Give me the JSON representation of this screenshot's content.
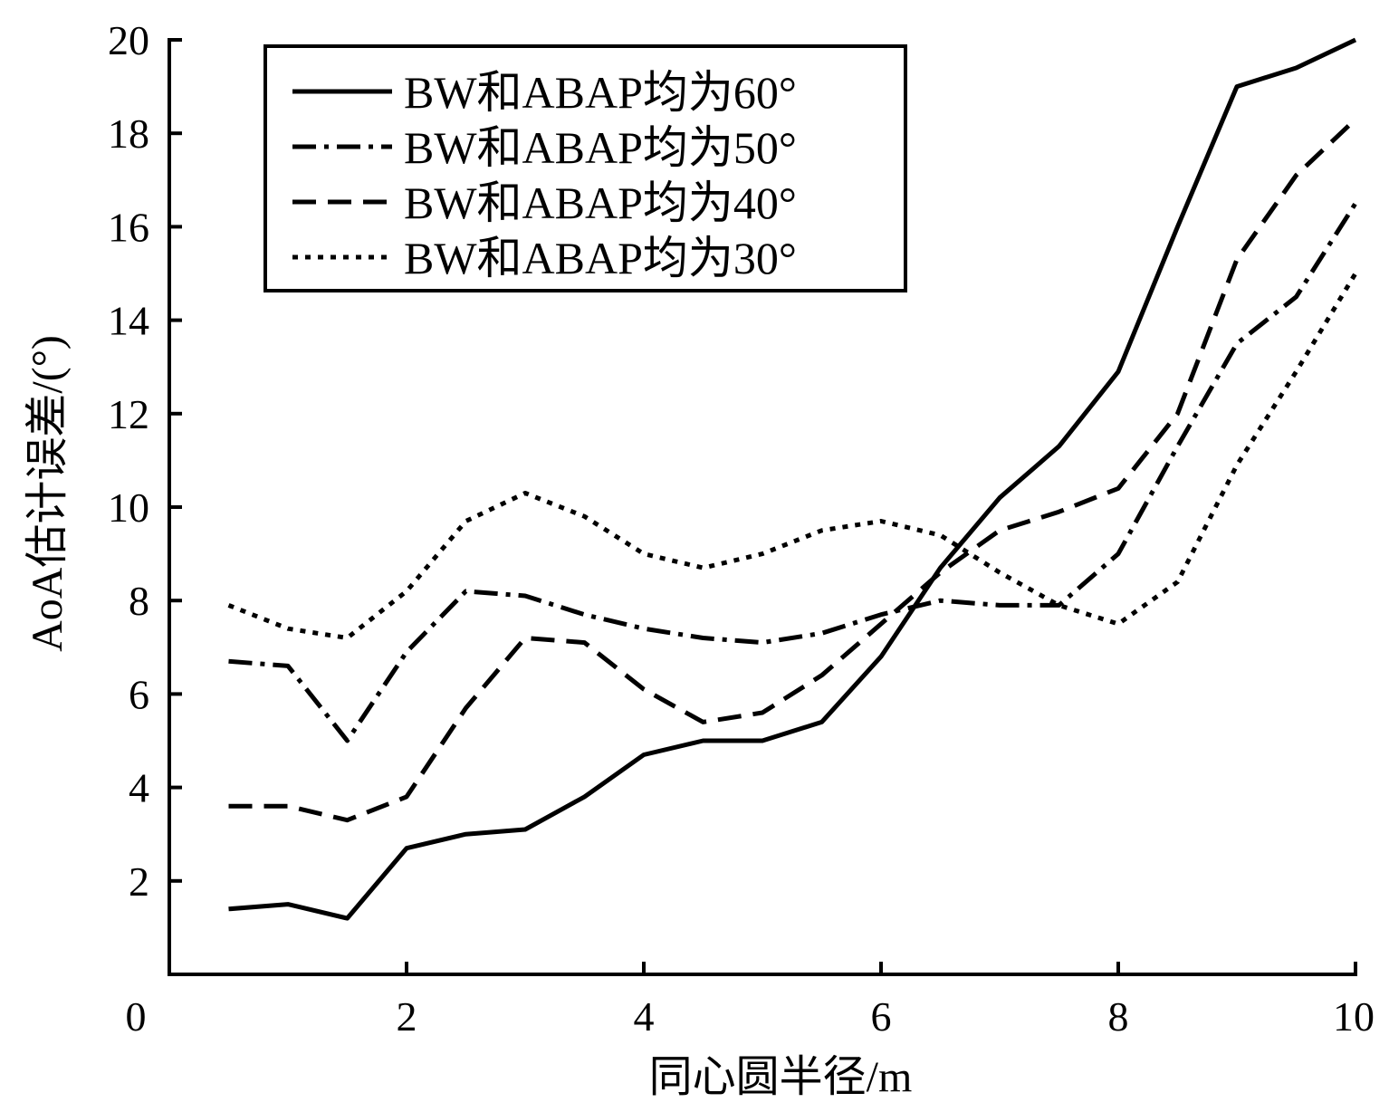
{
  "chart_data": {
    "type": "line",
    "title": "",
    "xlabel": "同心圆半径/m",
    "ylabel": "AoA估计误差/(°)",
    "xlim": [
      0,
      10
    ],
    "ylim": [
      0,
      20
    ],
    "x_ticks": [
      0,
      2,
      4,
      6,
      8,
      10
    ],
    "y_ticks": [
      2,
      4,
      6,
      8,
      10,
      12,
      14,
      16,
      18,
      20
    ],
    "grid": false,
    "legend": {
      "position": "top-left",
      "framed": true
    },
    "series": [
      {
        "name": "BW和ABAP均为60°",
        "style": "solid",
        "x": [
          0.5,
          1.0,
          1.5,
          2.0,
          2.5,
          3.0,
          3.5,
          4.0,
          4.5,
          5.0,
          5.5,
          6.0,
          6.5,
          7.0,
          7.5,
          8.0,
          8.5,
          9.0,
          9.5,
          10.0
        ],
        "y": [
          1.4,
          1.5,
          1.2,
          2.7,
          3.0,
          3.1,
          3.8,
          4.7,
          5.0,
          5.0,
          5.4,
          6.8,
          8.7,
          10.2,
          11.3,
          12.9,
          16.0,
          19.0,
          19.4,
          20.0
        ]
      },
      {
        "name": "BW和ABAP均为50°",
        "style": "dashdot",
        "x": [
          0.5,
          1.0,
          1.5,
          2.0,
          2.5,
          3.0,
          3.5,
          4.0,
          4.5,
          5.0,
          5.5,
          6.0,
          6.5,
          7.0,
          7.5,
          8.0,
          8.5,
          9.0,
          9.5,
          10.0
        ],
        "y": [
          6.7,
          6.6,
          5.0,
          6.9,
          8.2,
          8.1,
          7.7,
          7.4,
          7.2,
          7.1,
          7.3,
          7.7,
          8.0,
          7.9,
          7.9,
          9.0,
          11.3,
          13.5,
          14.5,
          16.5
        ]
      },
      {
        "name": "BW和ABAP均为40°",
        "style": "dashed",
        "x": [
          0.5,
          1.0,
          1.5,
          2.0,
          2.5,
          3.0,
          3.5,
          4.0,
          4.5,
          5.0,
          5.5,
          6.0,
          6.5,
          7.0,
          7.5,
          8.0,
          8.5,
          9.0,
          9.5,
          10.0
        ],
        "y": [
          3.6,
          3.6,
          3.3,
          3.8,
          5.7,
          7.2,
          7.1,
          6.1,
          5.4,
          5.6,
          6.4,
          7.5,
          8.6,
          9.5,
          9.9,
          10.4,
          12.0,
          15.3,
          17.1,
          18.3
        ]
      },
      {
        "name": "BW和ABAP均为30°",
        "style": "dotted",
        "x": [
          0.5,
          1.0,
          1.5,
          2.0,
          2.5,
          3.0,
          3.5,
          4.0,
          4.5,
          5.0,
          5.5,
          6.0,
          6.5,
          7.0,
          7.5,
          8.0,
          8.5,
          9.0,
          9.5,
          10.0
        ],
        "y": [
          7.9,
          7.4,
          7.2,
          8.2,
          9.7,
          10.3,
          9.8,
          9.0,
          8.7,
          9.0,
          9.5,
          9.7,
          9.4,
          8.6,
          7.9,
          7.5,
          8.4,
          10.9,
          12.9,
          15.0
        ]
      }
    ]
  }
}
